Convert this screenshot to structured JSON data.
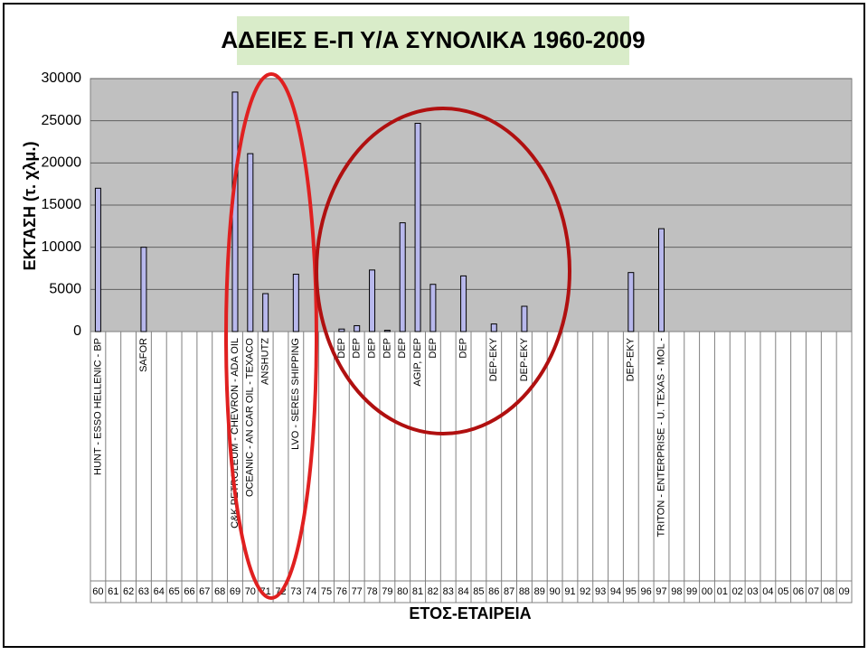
{
  "chart_data": {
    "type": "bar",
    "title": "ΑΔΕΙΕΣ Ε-Π Υ/Α ΣΥΝΟΛΙΚΑ 1960-2009",
    "y_label": "ΕΚΤΑΣΗ (τ. χλμ.)",
    "x_label": "ΕΤΟΣ-ΕΤΑΙΡΕΙΑ",
    "categories": [
      "60",
      "61",
      "62",
      "63",
      "64",
      "65",
      "66",
      "67",
      "68",
      "69",
      "70",
      "71",
      "72",
      "73",
      "74",
      "75",
      "76",
      "77",
      "78",
      "79",
      "80",
      "81",
      "82",
      "83",
      "84",
      "85",
      "86",
      "87",
      "88",
      "89",
      "90",
      "91",
      "92",
      "93",
      "94",
      "95",
      "96",
      "97",
      "98",
      "99",
      "00",
      "01",
      "02",
      "03",
      "04",
      "05",
      "06",
      "07",
      "08",
      "09"
    ],
    "companies": [
      "HUNT - ESSO HELLENIC - BP",
      null,
      null,
      "SAFOR",
      null,
      null,
      null,
      null,
      null,
      "C&K PETROLEUM - CHEVRON - ADA OIL",
      "OCEANIC - AN CAR OIL - TEXACO",
      "ANSHUTZ",
      null,
      "LVO - SERES SHIPPING",
      null,
      null,
      "DEP",
      "DEP",
      "DEP",
      "DEP",
      "DEP",
      "AGIP, DEP",
      "DEP",
      null,
      "DEP",
      null,
      "DEP-EKY",
      null,
      "DEP-EKY",
      null,
      null,
      null,
      null,
      null,
      null,
      "DEP-EKY",
      null,
      "TRITON - ENTERPRISE - U. TEXAS - MOL -",
      null,
      null,
      null,
      null,
      null,
      null,
      null,
      null,
      null,
      null,
      null,
      null
    ],
    "values": [
      17000,
      null,
      null,
      10000,
      null,
      null,
      null,
      null,
      null,
      28400,
      21100,
      4500,
      null,
      6800,
      null,
      null,
      300,
      700,
      7300,
      150,
      12900,
      24700,
      5600,
      null,
      6600,
      null,
      900,
      null,
      3000,
      null,
      null,
      null,
      null,
      null,
      null,
      7000,
      null,
      12200,
      null,
      null,
      null,
      null,
      null,
      null,
      null,
      null,
      null,
      null,
      null,
      null
    ],
    "color": "#b8b8ec",
    "ylim": [
      0,
      30000
    ],
    "yticks": [
      0,
      5000,
      10000,
      15000,
      20000,
      25000,
      30000
    ],
    "grid": true
  }
}
